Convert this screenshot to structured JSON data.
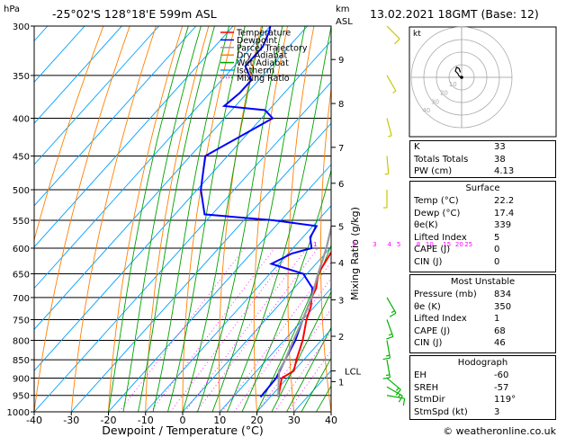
{
  "header": {
    "location": "-25°02'S  128°18'E  599m  ASL",
    "datetime": "13.02.2021  18GMT  (Base: 12)",
    "pressure_unit": "hPa",
    "height_unit_km": "km",
    "height_unit_asl": "ASL"
  },
  "footer": {
    "credit": "© weatheronline.co.uk"
  },
  "legend": [
    {
      "label": "Temperature",
      "color": "#ff0000"
    },
    {
      "label": "Dewpoint",
      "color": "#0000ff"
    },
    {
      "label": "Parcel Trajectory",
      "color": "#999999"
    },
    {
      "label": "Dry Adiabat",
      "color": "#ff8000"
    },
    {
      "label": "Wet Adiabat",
      "color": "#00a000"
    },
    {
      "label": "Isotherm",
      "color": "#00a0ff"
    },
    {
      "label": "Mixing Ratio",
      "color": "#ff00ff"
    }
  ],
  "hodograph": {
    "label": "kt",
    "rings": [
      "10",
      "20",
      "30",
      "40"
    ]
  },
  "stats": {
    "general": [
      {
        "label": "K",
        "value": "33"
      },
      {
        "label": "Totals Totals",
        "value": "38"
      },
      {
        "label": "PW (cm)",
        "value": "4.13"
      }
    ],
    "surface": {
      "title": "Surface",
      "rows": [
        {
          "label": "Temp (°C)",
          "value": "22.2"
        },
        {
          "label": "Dewp (°C)",
          "value": "17.4"
        },
        {
          "label": "θe(K)",
          "value": "339"
        },
        {
          "label": "Lifted Index",
          "value": "5"
        },
        {
          "label": "CAPE (J)",
          "value": "0"
        },
        {
          "label": "CIN (J)",
          "value": "0"
        }
      ]
    },
    "unstable": {
      "title": "Most Unstable",
      "rows": [
        {
          "label": "Pressure (mb)",
          "value": "834"
        },
        {
          "label": "θe (K)",
          "value": "350"
        },
        {
          "label": "Lifted Index",
          "value": "1"
        },
        {
          "label": "CAPE (J)",
          "value": "68"
        },
        {
          "label": "CIN (J)",
          "value": "46"
        }
      ]
    },
    "hodograph": {
      "title": "Hodograph",
      "rows": [
        {
          "label": "EH",
          "value": "-60"
        },
        {
          "label": "SREH",
          "value": "-57"
        },
        {
          "label": "StmDir",
          "value": "119°"
        },
        {
          "label": "StmSpd (kt)",
          "value": "3"
        }
      ]
    }
  },
  "chart_data": {
    "type": "line",
    "title": "-25°02'S  128°18'E  599m  ASL",
    "xlabel": "Dewpoint / Temperature (°C)",
    "ylabel": "hPa",
    "y2label": "Mixing Ratio (g/kg)",
    "y_scale": "log",
    "xlim": [
      -40,
      40
    ],
    "ylim": [
      1000,
      300
    ],
    "x_ticks": [
      -40,
      -30,
      -20,
      -10,
      0,
      10,
      20,
      30,
      40
    ],
    "pressure_levels": [
      300,
      350,
      400,
      450,
      500,
      550,
      600,
      650,
      700,
      750,
      800,
      850,
      900,
      950,
      1000
    ],
    "km_ticks": [
      {
        "km": "1",
        "p": 910
      },
      {
        "km": "2",
        "p": 790
      },
      {
        "km": "3",
        "p": 705
      },
      {
        "km": "4",
        "p": 628
      },
      {
        "km": "5",
        "p": 560
      },
      {
        "km": "6",
        "p": 490
      },
      {
        "km": "7",
        "p": 438
      },
      {
        "km": "8",
        "p": 382
      },
      {
        "km": "9",
        "p": 333
      }
    ],
    "lcl": {
      "label": "LCL",
      "p": 880
    },
    "mixing_ratio_labels": [
      {
        "label": "1",
        "p": 600,
        "t": -4
      },
      {
        "label": "2",
        "p": 600,
        "t": 6.5
      },
      {
        "label": "3",
        "p": 600,
        "t": 12
      },
      {
        "label": "4",
        "p": 600,
        "t": 16
      },
      {
        "label": "5",
        "p": 600,
        "t": 18.5
      },
      {
        "label": "8",
        "p": 600,
        "t": 23.8
      },
      {
        "label": "10",
        "p": 600,
        "t": 26.8
      },
      {
        "label": "15",
        "p": 600,
        "t": 31.5
      },
      {
        "label": "20",
        "p": 600,
        "t": 34.8
      },
      {
        "label": "25",
        "p": 600,
        "t": 37.3
      }
    ],
    "series": [
      {
        "name": "Temperature",
        "color": "#ff0000",
        "points": [
          [
            955,
            22.2
          ],
          [
            900,
            18.5
          ],
          [
            880,
            20
          ],
          [
            850,
            18
          ],
          [
            800,
            15
          ],
          [
            750,
            11
          ],
          [
            720,
            9
          ],
          [
            700,
            7
          ],
          [
            680,
            6
          ],
          [
            650,
            3
          ],
          [
            600,
            1
          ],
          [
            570,
            -3
          ],
          [
            550,
            -3
          ],
          [
            500,
            -9
          ],
          [
            450,
            -16
          ],
          [
            400,
            -22
          ],
          [
            380,
            -25
          ],
          [
            350,
            -31
          ],
          [
            330,
            -34
          ],
          [
            300,
            -40
          ]
        ]
      },
      {
        "name": "Dewpoint",
        "color": "#0000ff",
        "points": [
          [
            955,
            17.4
          ],
          [
            900,
            17
          ],
          [
            850,
            15
          ],
          [
            800,
            13
          ],
          [
            750,
            10
          ],
          [
            700,
            7
          ],
          [
            680,
            5
          ],
          [
            650,
            -1
          ],
          [
            630,
            -12
          ],
          [
            610,
            -9
          ],
          [
            600,
            -5
          ],
          [
            580,
            -8
          ],
          [
            560,
            -9
          ],
          [
            550,
            -22
          ],
          [
            540,
            -42
          ],
          [
            500,
            -49
          ],
          [
            450,
            -56
          ],
          [
            400,
            -47
          ],
          [
            390,
            -51
          ],
          [
            385,
            -63
          ],
          [
            370,
            -62
          ],
          [
            355,
            -62
          ],
          [
            340,
            -67
          ],
          [
            320,
            -67
          ],
          [
            305,
            -69
          ],
          [
            300,
            -70
          ]
        ]
      },
      {
        "name": "Parcel Trajectory",
        "color": "#999999",
        "points": [
          [
            955,
            22.2
          ],
          [
            880,
            16
          ],
          [
            850,
            15
          ],
          [
            800,
            12.5
          ],
          [
            750,
            10
          ],
          [
            700,
            7
          ],
          [
            650,
            3
          ],
          [
            600,
            -1
          ],
          [
            550,
            -6
          ],
          [
            500,
            -11
          ],
          [
            450,
            -17
          ],
          [
            400,
            -24
          ],
          [
            350,
            -32
          ],
          [
            300,
            -42
          ]
        ]
      }
    ],
    "wind_barbs": [
      {
        "p": 300,
        "dir": 135,
        "spd": 10
      },
      {
        "p": 350,
        "dir": 150,
        "spd": 5
      },
      {
        "p": 400,
        "dir": 165,
        "spd": 5
      },
      {
        "p": 450,
        "dir": 175,
        "spd": 5
      },
      {
        "p": 500,
        "dir": 180,
        "spd": 5
      },
      {
        "p": 700,
        "dir": 150,
        "spd": 15
      },
      {
        "p": 750,
        "dir": 160,
        "spd": 15
      },
      {
        "p": 800,
        "dir": 170,
        "spd": 15
      },
      {
        "p": 850,
        "dir": 170,
        "spd": 15
      },
      {
        "p": 900,
        "dir": 130,
        "spd": 15
      },
      {
        "p": 925,
        "dir": 120,
        "spd": 15
      },
      {
        "p": 950,
        "dir": 100,
        "spd": 10
      }
    ],
    "hodograph_trace": [
      [
        0,
        0
      ],
      [
        -2,
        1
      ],
      [
        -3,
        3
      ],
      [
        -5,
        5
      ],
      [
        -4,
        8
      ],
      [
        -2,
        7
      ],
      [
        -1,
        4
      ]
    ]
  }
}
